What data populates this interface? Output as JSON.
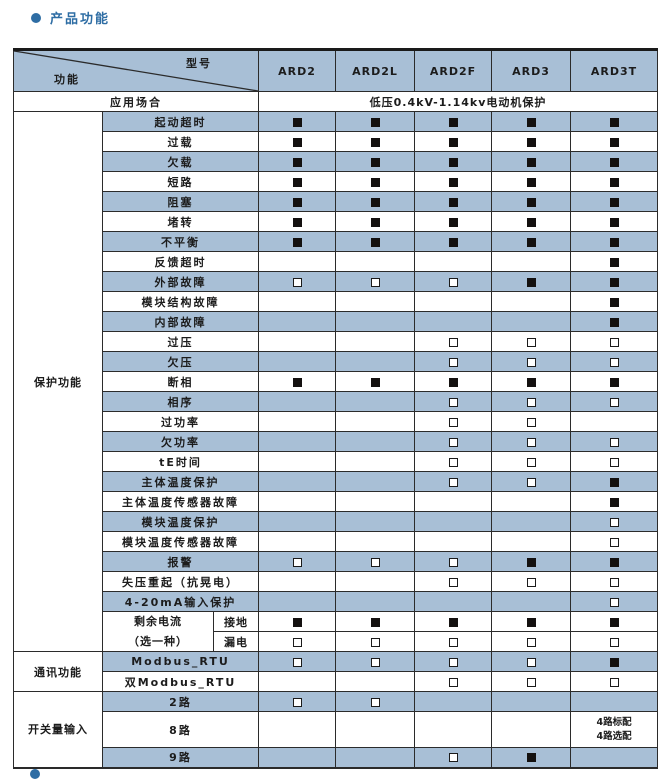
{
  "page": {
    "title": "产品功能",
    "accent_color": "#2e6da4",
    "table_blue": "#a8bfd6"
  },
  "table": {
    "corner": {
      "top_right_label": "型号",
      "bottom_left_label": "功能"
    },
    "model_columns": [
      "ARD2",
      "ARD2L",
      "ARD2F",
      "ARD3",
      "ARD3T"
    ],
    "application": {
      "label": "应用场合",
      "value": "低压0.4kV-1.14kv电动机保护"
    },
    "sections": [
      {
        "group_label": "保护功能",
        "rows": [
          {
            "label": "起动超时",
            "shade": true,
            "values": [
              "filled",
              "filled",
              "filled",
              "filled",
              "filled"
            ]
          },
          {
            "label": "过载",
            "shade": false,
            "values": [
              "filled",
              "filled",
              "filled",
              "filled",
              "filled"
            ]
          },
          {
            "label": "欠载",
            "shade": true,
            "values": [
              "filled",
              "filled",
              "filled",
              "filled",
              "filled"
            ]
          },
          {
            "label": "短路",
            "shade": false,
            "values": [
              "filled",
              "filled",
              "filled",
              "filled",
              "filled"
            ]
          },
          {
            "label": "阻塞",
            "shade": true,
            "values": [
              "filled",
              "filled",
              "filled",
              "filled",
              "filled"
            ]
          },
          {
            "label": "堵转",
            "shade": false,
            "values": [
              "filled",
              "filled",
              "filled",
              "filled",
              "filled"
            ]
          },
          {
            "label": "不平衡",
            "shade": true,
            "values": [
              "filled",
              "filled",
              "filled",
              "filled",
              "filled"
            ]
          },
          {
            "label": "反馈超时",
            "shade": false,
            "values": [
              "",
              "",
              "",
              "",
              "filled"
            ]
          },
          {
            "label": "外部故障",
            "shade": true,
            "values": [
              "open",
              "open",
              "open",
              "filled",
              "filled"
            ]
          },
          {
            "label": "模块结构故障",
            "shade": false,
            "values": [
              "",
              "",
              "",
              "",
              "filled"
            ]
          },
          {
            "label": "内部故障",
            "shade": true,
            "values": [
              "",
              "",
              "",
              "",
              "filled"
            ]
          },
          {
            "label": "过压",
            "shade": false,
            "values": [
              "",
              "",
              "open",
              "open",
              "open"
            ]
          },
          {
            "label": "欠压",
            "shade": true,
            "values": [
              "",
              "",
              "open",
              "open",
              "open"
            ]
          },
          {
            "label": "断相",
            "shade": false,
            "values": [
              "filled",
              "filled",
              "filled",
              "filled",
              "filled"
            ]
          },
          {
            "label": "相序",
            "shade": true,
            "values": [
              "",
              "",
              "open",
              "open",
              "open"
            ]
          },
          {
            "label": "过功率",
            "shade": false,
            "values": [
              "",
              "",
              "open",
              "open",
              ""
            ]
          },
          {
            "label": "欠功率",
            "shade": true,
            "values": [
              "",
              "",
              "open",
              "open",
              "open"
            ]
          },
          {
            "label": "tE时间",
            "shade": false,
            "values": [
              "",
              "",
              "open",
              "open",
              "open"
            ]
          },
          {
            "label": "主体温度保护",
            "shade": true,
            "values": [
              "",
              "",
              "open",
              "open",
              "filled"
            ]
          },
          {
            "label": "主体温度传感器故障",
            "shade": false,
            "values": [
              "",
              "",
              "",
              "",
              "filled"
            ]
          },
          {
            "label": "模块温度保护",
            "shade": true,
            "values": [
              "",
              "",
              "",
              "",
              "open"
            ]
          },
          {
            "label": "模块温度传感器故障",
            "shade": false,
            "values": [
              "",
              "",
              "",
              "",
              "open"
            ]
          },
          {
            "label": "报警",
            "shade": true,
            "values": [
              "open",
              "open",
              "open",
              "filled",
              "filled"
            ]
          },
          {
            "label": "失压重起（抗晃电）",
            "shade": false,
            "values": [
              "",
              "",
              "open",
              "open",
              "open"
            ]
          },
          {
            "label": "4-20mA输入保护",
            "shade": true,
            "values": [
              "",
              "",
              "",
              "",
              "open"
            ]
          },
          {
            "label": "接地",
            "shade": false,
            "pair": "start",
            "pair_lines": [
              "剩余电流",
              "（选一种）"
            ],
            "values": [
              "filled",
              "filled",
              "filled",
              "filled",
              "filled"
            ]
          },
          {
            "label": "漏电",
            "shade": false,
            "pair": "end",
            "values": [
              "open",
              "open",
              "open",
              "open",
              "open"
            ]
          }
        ]
      },
      {
        "group_label": "通讯功能",
        "rows": [
          {
            "label": "Modbus_RTU",
            "shade": true,
            "values": [
              "open",
              "open",
              "open",
              "open",
              "filled"
            ]
          },
          {
            "label": "双Modbus_RTU",
            "shade": false,
            "values": [
              "",
              "",
              "open",
              "open",
              "open"
            ]
          }
        ]
      },
      {
        "group_label": "开关量输入",
        "rows": [
          {
            "label": "2路",
            "shade": true,
            "values": [
              "open",
              "open",
              "",
              "",
              ""
            ]
          },
          {
            "label": "8路",
            "shade": false,
            "tall": true,
            "values": [
              "",
              "",
              "",
              "",
              {
                "lines": [
                  "4路标配",
                  "4路选配"
                ]
              }
            ]
          },
          {
            "label": "9路",
            "shade": true,
            "values": [
              "",
              "",
              "open",
              "filled",
              ""
            ]
          }
        ]
      }
    ]
  }
}
